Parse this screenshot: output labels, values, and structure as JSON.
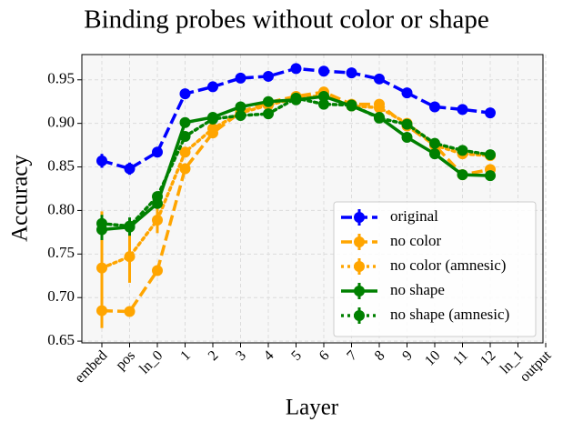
{
  "chart_data": {
    "type": "line",
    "title": "Binding probes without color or shape",
    "xlabel": "Layer",
    "ylabel": "Accuracy",
    "categories": [
      "embed",
      "pos",
      "ln_0",
      "1",
      "2",
      "3",
      "4",
      "5",
      "6",
      "7",
      "8",
      "9",
      "10",
      "11",
      "12",
      "ln_1",
      "output"
    ],
    "ylim": [
      0.648,
      0.979
    ],
    "yticks": [
      0.65,
      {
        "value": 0.7,
        "label": "0.70"
      },
      0.75,
      {
        "value": 0.8,
        "label": "0.80"
      },
      0.85,
      {
        "value": 0.9,
        "label": "0.90"
      },
      0.95
    ],
    "grid": true,
    "legend": "lower right",
    "series": [
      {
        "name": "original",
        "color": "#0000ff",
        "linestyle": "dashed",
        "values": [
          0.857,
          0.848,
          0.867,
          0.934,
          0.942,
          0.952,
          0.954,
          0.963,
          0.96,
          0.958,
          0.951,
          0.935,
          0.919,
          0.916,
          0.912,
          null,
          null
        ],
        "errors": [
          0.008,
          0.007,
          0.004,
          0.003,
          0.003,
          0.003,
          0.003,
          0.003,
          0.004,
          0.003,
          0.003,
          0.003,
          0.003,
          0.006,
          0.003,
          null,
          null
        ]
      },
      {
        "name": "no color",
        "color": "#ffa500",
        "linestyle": "dashed",
        "values": [
          0.685,
          0.684,
          0.731,
          0.848,
          0.889,
          0.913,
          0.924,
          0.931,
          0.936,
          0.922,
          0.922,
          0.897,
          0.875,
          0.841,
          0.847,
          null,
          null
        ],
        "errors": [
          0.02,
          0.004,
          0.004,
          0.006,
          0.006,
          0.004,
          0.004,
          0.004,
          0.004,
          0.004,
          0.004,
          0.004,
          0.004,
          0.006,
          0.006,
          null,
          null
        ]
      },
      {
        "name": "no color (amnesic)",
        "color": "#ffa500",
        "linestyle": "dotted",
        "values": [
          0.734,
          0.747,
          0.789,
          0.867,
          0.894,
          0.912,
          0.921,
          0.929,
          0.932,
          0.92,
          0.918,
          0.9,
          0.875,
          0.865,
          0.863,
          null,
          null
        ],
        "errors": [
          0.065,
          0.03,
          0.015,
          0.006,
          0.005,
          0.004,
          0.004,
          0.004,
          0.004,
          0.004,
          0.004,
          0.004,
          0.004,
          0.005,
          0.004,
          null,
          null
        ]
      },
      {
        "name": "no shape",
        "color": "#008000",
        "linestyle": "solid",
        "values": [
          0.778,
          0.781,
          0.808,
          0.901,
          0.907,
          0.919,
          0.925,
          0.927,
          0.931,
          0.92,
          0.907,
          0.884,
          0.865,
          0.841,
          0.84,
          null,
          null
        ],
        "errors": [
          0.012,
          0.01,
          0.006,
          0.004,
          0.004,
          0.004,
          0.004,
          0.004,
          0.004,
          0.004,
          0.004,
          0.004,
          0.004,
          0.004,
          0.004,
          null,
          null
        ]
      },
      {
        "name": "no shape (amnesic)",
        "color": "#008000",
        "linestyle": "dotted",
        "values": [
          0.785,
          0.782,
          0.816,
          0.885,
          0.905,
          0.909,
          0.911,
          0.929,
          0.922,
          0.921,
          0.906,
          0.899,
          0.877,
          0.869,
          0.864,
          null,
          null
        ],
        "errors": [
          0.01,
          0.01,
          0.006,
          0.004,
          0.004,
          0.004,
          0.004,
          0.004,
          0.004,
          0.004,
          0.004,
          0.004,
          0.004,
          0.004,
          0.004,
          null,
          null
        ]
      }
    ]
  }
}
